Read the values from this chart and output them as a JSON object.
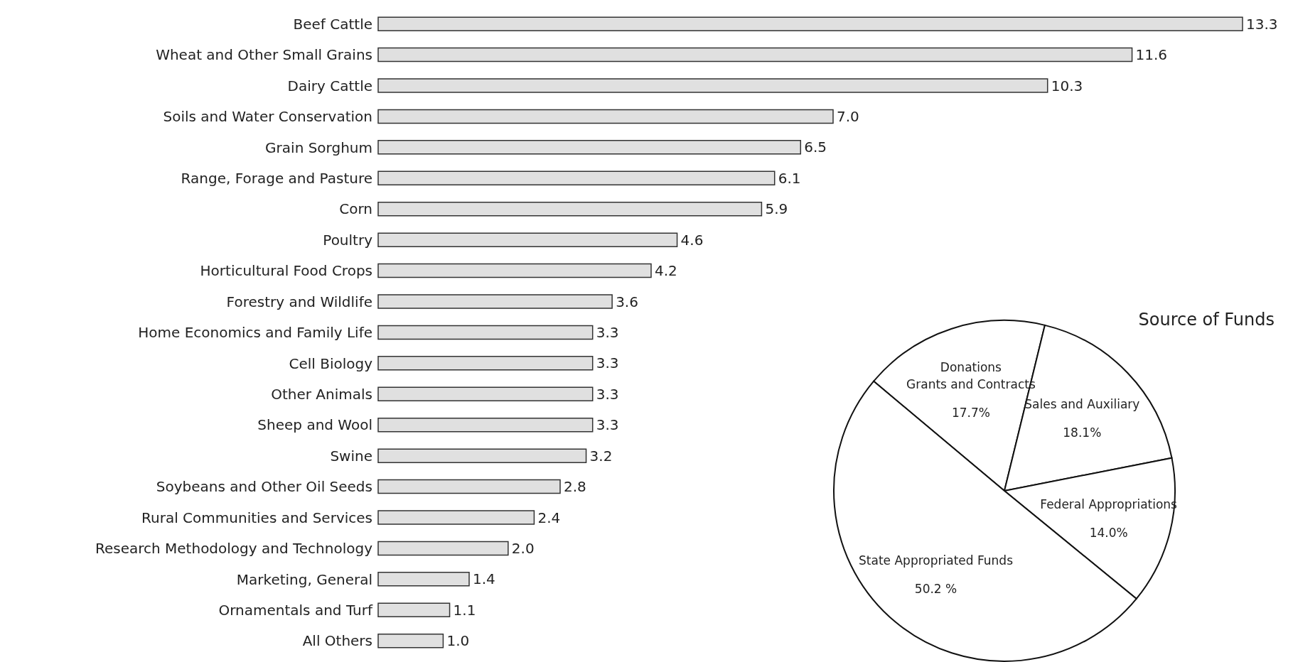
{
  "chart_data": [
    {
      "type": "bar",
      "orientation": "horizontal",
      "categories": [
        "Beef Cattle",
        "Wheat and Other Small Grains",
        "Dairy Cattle",
        "Soils and Water Conservation",
        "Grain Sorghum",
        "Range, Forage and Pasture",
        "Corn",
        "Poultry",
        "Horticultural Food Crops",
        "Forestry and Wildlife",
        "Home Economics and Family Life",
        "Cell Biology",
        "Other Animals",
        "Sheep and Wool",
        "Swine",
        "Soybeans and Other Oil Seeds",
        "Rural Communities and Services",
        "Research Methodology and Technology",
        "Marketing, General",
        "Ornamentals and Turf",
        "All Others"
      ],
      "values": [
        13.3,
        11.6,
        10.3,
        7.0,
        6.5,
        6.1,
        5.9,
        4.6,
        4.2,
        3.6,
        3.3,
        3.3,
        3.3,
        3.3,
        3.2,
        2.8,
        2.4,
        2.0,
        1.4,
        1.1,
        1.0
      ],
      "value_labels": [
        "13.3",
        "11.6",
        "10.3",
        "7.0",
        "6.5",
        "6.1",
        "5.9",
        "4.6",
        "4.2",
        "3.6",
        "3.3",
        "3.3",
        "3.3",
        "3.3",
        "3.2",
        "2.8",
        "2.4",
        "2.0",
        "1.4",
        "1.1",
        "1.0"
      ],
      "color": "#e0e0e0"
    },
    {
      "type": "pie",
      "title": "Source of Funds",
      "categories": [
        "Donations\nGrants and Contracts",
        "Sales and Auxiliary",
        "Federal Appropriations",
        "State Appropriated Funds"
      ],
      "values": [
        17.7,
        18.1,
        14.0,
        50.2
      ],
      "value_labels": [
        "17.7%",
        "18.1%",
        "14.0%",
        "50.2 %"
      ],
      "colors": [
        "#ffffff",
        "#ffffff",
        "#ffffff",
        "#ffffff"
      ]
    }
  ]
}
